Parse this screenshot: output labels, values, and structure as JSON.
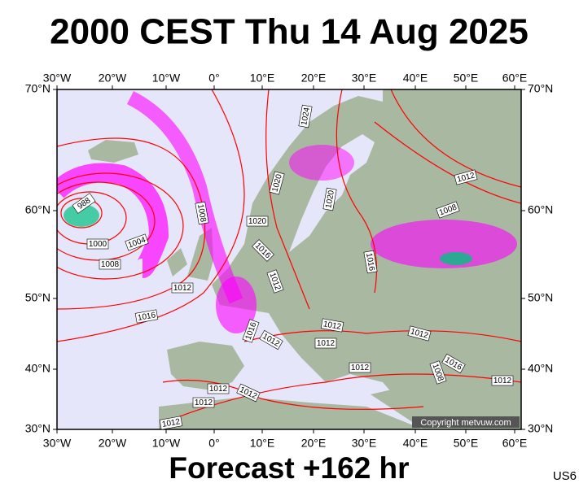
{
  "title": "2000 CEST Thu 14 Aug 2025",
  "footer": "Forecast +162 hr",
  "model": "US6",
  "copyright": "Copyright metvuw.com",
  "map": {
    "lon_labels": [
      "30°W",
      "20°W",
      "10°W",
      "0°",
      "10°E",
      "20°E",
      "30°E",
      "40°E",
      "50°E",
      "60°E"
    ],
    "lat_labels": [
      "70°N",
      "60°N",
      "50°N",
      "40°N",
      "30°N"
    ],
    "isobar_labels": [
      "988",
      "1000",
      "1004",
      "1008",
      "1012",
      "1016",
      "1008",
      "1020",
      "1016",
      "1012",
      "1024",
      "1020",
      "1020",
      "1016",
      "1012",
      "1008",
      "1012",
      "1012",
      "1012",
      "1016",
      "1012",
      "1012",
      "1016",
      "1008",
      "1012",
      "1012",
      "1012",
      "1012",
      "1012"
    ]
  }
}
